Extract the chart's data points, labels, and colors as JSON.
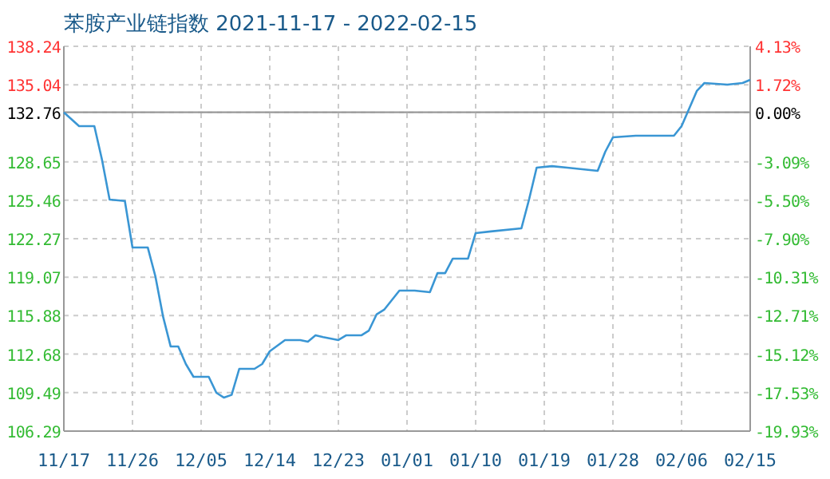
{
  "chart_data": {
    "type": "line",
    "title": "苯胺产业链指数 2021-11-17 - 2022-02-15",
    "x": [
      "2021-11-17",
      "2021-11-19",
      "2021-11-21",
      "2021-11-22",
      "2021-11-23",
      "2021-11-25",
      "2021-11-26",
      "2021-11-28",
      "2021-11-29",
      "2021-11-30",
      "2021-12-01",
      "2021-12-02",
      "2021-12-03",
      "2021-12-04",
      "2021-12-05",
      "2021-12-06",
      "2021-12-07",
      "2021-12-08",
      "2021-12-09",
      "2021-12-10",
      "2021-12-12",
      "2021-12-13",
      "2021-12-14",
      "2021-12-16",
      "2021-12-18",
      "2021-12-19",
      "2021-12-20",
      "2021-12-21",
      "2021-12-23",
      "2021-12-24",
      "2021-12-26",
      "2021-12-27",
      "2021-12-28",
      "2021-12-29",
      "2021-12-31",
      "2022-01-02",
      "2022-01-04",
      "2022-01-05",
      "2022-01-06",
      "2022-01-07",
      "2022-01-09",
      "2022-01-10",
      "2022-01-12",
      "2022-01-16",
      "2022-01-17",
      "2022-01-18",
      "2022-01-20",
      "2022-01-22",
      "2022-01-26",
      "2022-01-27",
      "2022-01-28",
      "2022-01-31",
      "2022-02-05",
      "2022-02-06",
      "2022-02-08",
      "2022-02-09",
      "2022-02-12",
      "2022-02-14",
      "2022-02-15"
    ],
    "series": [
      {
        "color": "#3a96d4",
        "values": [
          132.76,
          131.61,
          131.61,
          128.83,
          125.51,
          125.4,
          121.54,
          121.54,
          119.15,
          115.83,
          113.32,
          113.32,
          111.86,
          110.8,
          110.8,
          110.8,
          109.47,
          109.07,
          109.3,
          111.46,
          111.46,
          111.86,
          112.92,
          113.85,
          113.85,
          113.72,
          114.24,
          114.1,
          113.85,
          114.24,
          114.24,
          114.64,
          115.97,
          116.37,
          117.96,
          117.96,
          117.82,
          119.41,
          119.41,
          120.61,
          120.61,
          122.73,
          122.87,
          123.13,
          125.51,
          128.16,
          128.29,
          128.16,
          127.9,
          129.49,
          130.68,
          130.82,
          130.82,
          131.61,
          134.53,
          135.19,
          135.06,
          135.19,
          135.46
        ]
      }
    ],
    "xlim": [
      "2021-11-17",
      "2022-02-15"
    ],
    "xticks": [
      {
        "value": "2021-11-17",
        "label": "11/17"
      },
      {
        "value": "2021-11-26",
        "label": "11/26"
      },
      {
        "value": "2021-12-05",
        "label": "12/05"
      },
      {
        "value": "2021-12-14",
        "label": "12/14"
      },
      {
        "value": "2021-12-23",
        "label": "12/23"
      },
      {
        "value": "2022-01-01",
        "label": "01/01"
      },
      {
        "value": "2022-01-10",
        "label": "01/10"
      },
      {
        "value": "2022-01-19",
        "label": "01/19"
      },
      {
        "value": "2022-01-28",
        "label": "01/28"
      },
      {
        "value": "2022-02-06",
        "label": "02/06"
      },
      {
        "value": "2022-02-15",
        "label": "02/15"
      }
    ],
    "ylim": [
      106.29,
      138.24
    ],
    "yticks": [
      106.29,
      109.49,
      112.68,
      115.88,
      119.07,
      122.27,
      125.46,
      128.65,
      132.76,
      135.04,
      138.24
    ],
    "y2lim": [
      -19.93,
      4.13
    ],
    "y2ticks": [
      {
        "value": -19.93,
        "label": "-19.93%"
      },
      {
        "value": -17.53,
        "label": "-17.53%"
      },
      {
        "value": -15.12,
        "label": "-15.12%"
      },
      {
        "value": -12.71,
        "label": "-12.71%"
      },
      {
        "value": -10.31,
        "label": "-10.31%"
      },
      {
        "value": -7.9,
        "label": "-7.90%"
      },
      {
        "value": -5.5,
        "label": "-5.50%"
      },
      {
        "value": -3.09,
        "label": "-3.09%"
      },
      {
        "value": 0,
        "label": "0.00%"
      },
      {
        "value": 1.72,
        "label": "1.72%"
      },
      {
        "value": 4.13,
        "label": "4.13%"
      }
    ],
    "ref_lines": [
      {
        "axis": "y",
        "value": 132.76,
        "color": "#999999"
      }
    ],
    "grid": true
  }
}
